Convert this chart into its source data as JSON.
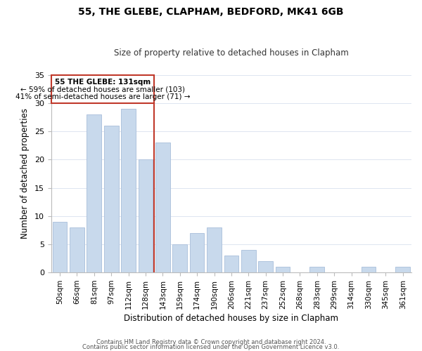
{
  "title": "55, THE GLEBE, CLAPHAM, BEDFORD, MK41 6GB",
  "subtitle": "Size of property relative to detached houses in Clapham",
  "xlabel": "Distribution of detached houses by size in Clapham",
  "ylabel": "Number of detached properties",
  "bar_labels": [
    "50sqm",
    "66sqm",
    "81sqm",
    "97sqm",
    "112sqm",
    "128sqm",
    "143sqm",
    "159sqm",
    "174sqm",
    "190sqm",
    "206sqm",
    "221sqm",
    "237sqm",
    "252sqm",
    "268sqm",
    "283sqm",
    "299sqm",
    "314sqm",
    "330sqm",
    "345sqm",
    "361sqm"
  ],
  "bar_values": [
    9,
    8,
    28,
    26,
    29,
    20,
    23,
    5,
    7,
    8,
    3,
    4,
    2,
    1,
    0,
    1,
    0,
    0,
    1,
    0,
    1
  ],
  "bar_color": "#c8d9ec",
  "bar_edge_color": "#b0c4de",
  "highlight_bar_index": 5,
  "vline_color": "#c0392b",
  "annotation_line1": "55 THE GLEBE: 131sqm",
  "annotation_line2": "← 59% of detached houses are smaller (103)",
  "annotation_line3": "41% of semi-detached houses are larger (71) →",
  "annotation_box_edge_color": "#c0392b",
  "ylim": [
    0,
    35
  ],
  "yticks": [
    0,
    5,
    10,
    15,
    20,
    25,
    30,
    35
  ],
  "footer_line1": "Contains HM Land Registry data © Crown copyright and database right 2024.",
  "footer_line2": "Contains public sector information licensed under the Open Government Licence v3.0.",
  "background_color": "#ffffff",
  "grid_color": "#dde5f0"
}
